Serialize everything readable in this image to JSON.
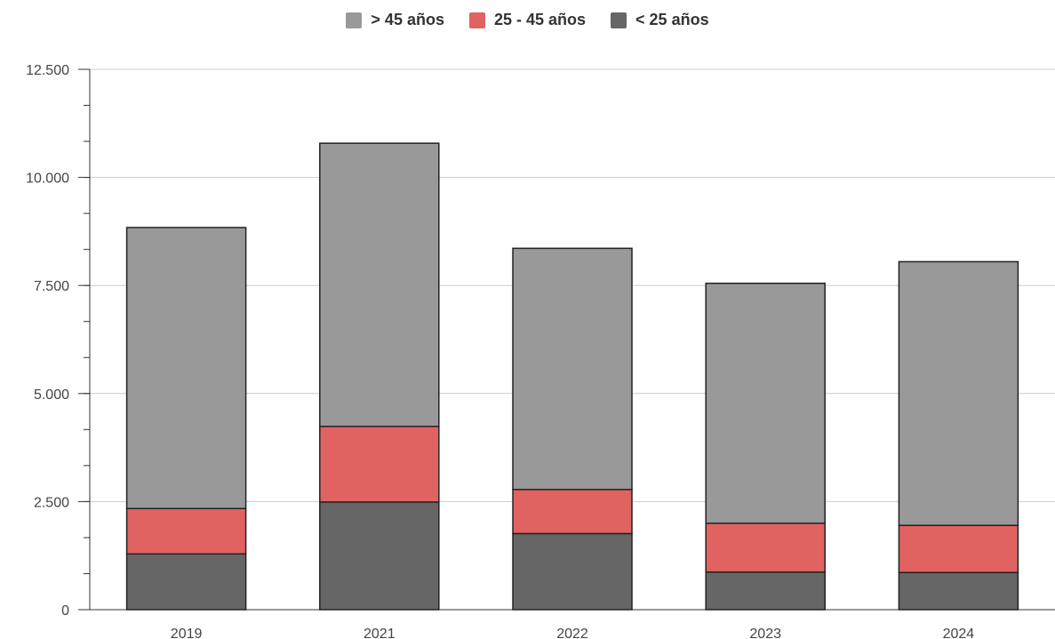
{
  "chart_data": {
    "type": "bar",
    "stacked": true,
    "categories": [
      "2019",
      "2021",
      "2022",
      "2023",
      "2024"
    ],
    "series": [
      {
        "name": "> 45 años",
        "color": "#999999",
        "values": [
          6500,
          6550,
          5580,
          5550,
          6100
        ]
      },
      {
        "name": "25 - 45 años",
        "color": "#e06361",
        "values": [
          1050,
          1750,
          1020,
          1130,
          1090
        ]
      },
      {
        "name": "< 25 años",
        "color": "#666666",
        "values": [
          1290,
          2490,
          1760,
          870,
          860
        ]
      }
    ],
    "legend_order": [
      0,
      1,
      2
    ],
    "legend_position": "top",
    "ylim": [
      0,
      12500
    ],
    "yticks": [
      0,
      2500,
      5000,
      7500,
      10000,
      12500
    ],
    "ytick_labels": [
      "0",
      "2.500",
      "5.000",
      "7.500",
      "10.000",
      "12.500"
    ],
    "grid": true
  }
}
